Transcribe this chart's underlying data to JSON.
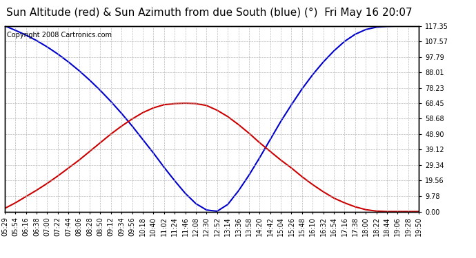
{
  "title": "Sun Altitude (red) & Sun Azimuth from due South (blue) (°)  Fri May 16 20:07",
  "copyright": "Copyright 2008 Cartronics.com",
  "background_color": "#ffffff",
  "plot_bg_color": "#ffffff",
  "grid_color": "#aaaaaa",
  "y_ticks": [
    0.0,
    9.78,
    19.56,
    29.34,
    39.12,
    48.9,
    58.68,
    68.45,
    78.23,
    88.01,
    97.79,
    107.57,
    117.35
  ],
  "x_labels": [
    "05:29",
    "05:54",
    "06:16",
    "06:38",
    "07:00",
    "07:22",
    "07:44",
    "08:06",
    "08:28",
    "08:50",
    "09:12",
    "09:34",
    "09:56",
    "10:18",
    "10:40",
    "11:02",
    "11:24",
    "11:46",
    "12:08",
    "12:30",
    "12:52",
    "13:14",
    "13:36",
    "13:58",
    "14:20",
    "14:42",
    "15:04",
    "15:26",
    "15:48",
    "16:10",
    "16:32",
    "16:54",
    "17:16",
    "17:38",
    "18:00",
    "18:22",
    "18:44",
    "19:06",
    "19:28",
    "19:50"
  ],
  "altitude_values": [
    2.0,
    5.5,
    9.5,
    13.5,
    17.8,
    22.5,
    27.5,
    32.5,
    38.0,
    43.5,
    49.0,
    54.0,
    58.5,
    62.5,
    65.5,
    67.5,
    68.2,
    68.45,
    68.2,
    67.0,
    64.0,
    60.0,
    55.0,
    49.5,
    43.5,
    38.0,
    32.5,
    27.5,
    22.0,
    17.0,
    12.5,
    8.5,
    5.5,
    3.0,
    1.2,
    0.3,
    0.0,
    0.0,
    0.0,
    0.0
  ],
  "azimuth_values": [
    117.35,
    114.5,
    111.5,
    108.0,
    104.0,
    99.5,
    94.5,
    89.0,
    83.0,
    76.5,
    69.5,
    62.0,
    54.0,
    45.5,
    37.0,
    28.0,
    19.5,
    11.5,
    5.0,
    1.0,
    0.2,
    4.5,
    13.0,
    23.0,
    34.0,
    45.5,
    57.0,
    67.5,
    77.5,
    86.5,
    94.5,
    101.5,
    107.5,
    112.0,
    115.0,
    116.5,
    117.0,
    117.2,
    117.3,
    117.35
  ],
  "line_color_altitude": "#cc0000",
  "line_color_azimuth": "#0000cc",
  "ylim": [
    0.0,
    117.35
  ],
  "title_fontsize": 11,
  "tick_fontsize": 7,
  "copyright_fontsize": 7,
  "line_width": 1.5
}
